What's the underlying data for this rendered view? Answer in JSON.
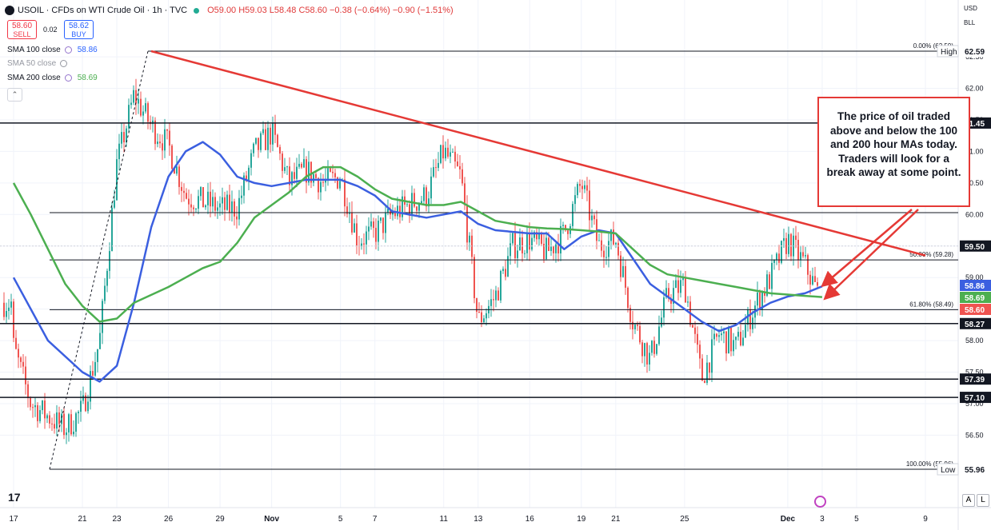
{
  "header": {
    "symbol": "USOIL · CFDs on WTI Crude Oil · 1h · TVC",
    "ohlc": "O59.00 H59.03 L58.48 C58.60 −0.38 (−0.64%) −0.90 (−1.51%)"
  },
  "trade": {
    "sell_price": "58.60",
    "sell_label": "SELL",
    "spread": "0.02",
    "buy_price": "58.62",
    "buy_label": "BUY"
  },
  "indicators": [
    {
      "label": "SMA 100 close",
      "value": "58.86",
      "color": "#2962ff"
    },
    {
      "label": "SMA 50 close",
      "value": "",
      "color": "#9598a1"
    },
    {
      "label": "SMA 200 close",
      "value": "58.69",
      "color": "#4caf50"
    }
  ],
  "toolbar": {
    "currency": "USD",
    "unit": "BLL",
    "auto_btn": "A",
    "log_btn": "L"
  },
  "annotation": "The price of oil traded above and below the 100 and 200 hour MAs today.  Traders will look for a break away at some point.",
  "colors": {
    "up": "#26a69a",
    "down": "#ef5350",
    "sma100": "#3b5fe0",
    "sma200": "#4caf50",
    "trend": "#e53935"
  },
  "chart_data": {
    "type": "candlestick",
    "x_tick_labels": [
      "17",
      "21",
      "23",
      "26",
      "29",
      "Nov",
      "5",
      "7",
      "11",
      "13",
      "16",
      "19",
      "21",
      "25",
      "Dec",
      "3",
      "5",
      "9"
    ],
    "y_tick_labels": [
      "56.50",
      "57.00",
      "57.50",
      "58.00",
      "58.50",
      "59.00",
      "59.50",
      "60.00",
      "60.50",
      "61.00",
      "61.50",
      "62.00",
      "62.50"
    ],
    "ylim": [
      55.5,
      63.2
    ],
    "horizontal_levels": [
      {
        "price": 62.59,
        "label": "62.59",
        "tag": "High"
      },
      {
        "price": 61.45,
        "label": "61.45"
      },
      {
        "price": 60.03,
        "label": ""
      },
      {
        "price": 59.5,
        "label": "59.50"
      },
      {
        "price": 59.28,
        "label": ""
      },
      {
        "price": 58.49,
        "label": ""
      },
      {
        "price": 58.27,
        "label": "58.27"
      },
      {
        "price": 57.39,
        "label": "57.39"
      },
      {
        "price": 57.1,
        "label": "57.10"
      },
      {
        "price": 55.96,
        "label": "55.96",
        "tag": "Low"
      }
    ],
    "fib_labels": [
      {
        "price": 62.59,
        "text": "0.00% (62.59)"
      },
      {
        "price": 59.28,
        "text": "50.00% (59.28)"
      },
      {
        "price": 58.49,
        "text": "61.80% (58.49)"
      },
      {
        "price": 55.96,
        "text": "100.00% (55.96)"
      }
    ],
    "price_tags": [
      {
        "price": 58.86,
        "text": "58.86",
        "color": "#3b5fe0"
      },
      {
        "price": 58.69,
        "text": "58.69",
        "color": "#4caf50"
      },
      {
        "price": 58.6,
        "text": "58.60",
        "color": "#ef5350"
      }
    ],
    "trendline": {
      "from": [
        "Oct 25",
        62.59
      ],
      "to": [
        "Dec 9",
        59.4
      ]
    },
    "close_path": [
      [
        "Oct 17",
        57.9
      ],
      [
        "Oct 18",
        57.0
      ],
      [
        "Oct 20",
        56.6
      ],
      [
        "Oct 21",
        56.9
      ],
      [
        "Oct 22",
        58.0
      ],
      [
        "Oct 23",
        60.8
      ],
      [
        "Oct 24",
        61.9
      ],
      [
        "Oct 25",
        61.4
      ],
      [
        "Oct 26",
        61.1
      ],
      [
        "Oct 27",
        60.3
      ],
      [
        "Oct 28",
        60.2
      ],
      [
        "Oct 29",
        60.1
      ],
      [
        "Oct 30",
        60.1
      ],
      [
        "Oct 31",
        61.0
      ],
      [
        "Nov 1",
        61.3
      ],
      [
        "Nov 2",
        60.5
      ],
      [
        "Nov 3",
        60.7
      ],
      [
        "Nov 4",
        60.5
      ],
      [
        "Nov 5",
        60.6
      ],
      [
        "Nov 6",
        59.6
      ],
      [
        "Nov 7",
        59.7
      ],
      [
        "Nov 8",
        60.0
      ],
      [
        "Nov 10",
        60.3
      ],
      [
        "Nov 11",
        61.0
      ],
      [
        "Nov 12",
        60.6
      ],
      [
        "Nov 13",
        58.3
      ],
      [
        "Nov 14",
        58.7
      ],
      [
        "Nov 15",
        59.5
      ],
      [
        "Nov 16",
        59.6
      ],
      [
        "Nov 17",
        59.4
      ],
      [
        "Nov 18",
        59.7
      ],
      [
        "Nov 19",
        60.5
      ],
      [
        "Nov 20",
        59.5
      ],
      [
        "Nov 21",
        59.6
      ],
      [
        "Nov 22",
        58.3
      ],
      [
        "Nov 23",
        57.7
      ],
      [
        "Nov 24",
        58.7
      ],
      [
        "Nov 25",
        58.9
      ],
      [
        "Nov 26",
        57.4
      ],
      [
        "Nov 27",
        58.1
      ],
      [
        "Nov 28",
        57.9
      ],
      [
        "Nov 29",
        58.5
      ],
      [
        "Nov 30",
        59.0
      ],
      [
        "Dec 1",
        59.6
      ],
      [
        "Dec 2",
        59.2
      ],
      [
        "Dec 3",
        58.6
      ]
    ],
    "series": [
      {
        "name": "SMA 100 close",
        "values": [
          [
            "Oct 17",
            59.0
          ],
          [
            "Oct 19",
            58.0
          ],
          [
            "Oct 21",
            57.5
          ],
          [
            "Oct 22",
            57.35
          ],
          [
            "Oct 23",
            57.6
          ],
          [
            "Oct 24",
            58.6
          ],
          [
            "Oct 25",
            59.8
          ],
          [
            "Oct 26",
            60.6
          ],
          [
            "Oct 27",
            61.0
          ],
          [
            "Oct 28",
            61.15
          ],
          [
            "Oct 29",
            60.95
          ],
          [
            "Oct 30",
            60.6
          ],
          [
            "Oct 31",
            60.5
          ],
          [
            "Nov 1",
            60.45
          ],
          [
            "Nov 3",
            60.55
          ],
          [
            "Nov 5",
            60.55
          ],
          [
            "Nov 6",
            60.45
          ],
          [
            "Nov 7",
            60.3
          ],
          [
            "Nov 8",
            60.05
          ],
          [
            "Nov 10",
            59.95
          ],
          [
            "Nov 11",
            60.0
          ],
          [
            "Nov 12",
            60.05
          ],
          [
            "Nov 13",
            59.85
          ],
          [
            "Nov 14",
            59.75
          ],
          [
            "Nov 16",
            59.7
          ],
          [
            "Nov 17",
            59.7
          ],
          [
            "Nov 18",
            59.45
          ],
          [
            "Nov 19",
            59.65
          ],
          [
            "Nov 20",
            59.75
          ],
          [
            "Nov 21",
            59.7
          ],
          [
            "Nov 22",
            59.3
          ],
          [
            "Nov 23",
            58.9
          ],
          [
            "Nov 24",
            58.7
          ],
          [
            "Nov 25",
            58.5
          ],
          [
            "Nov 26",
            58.3
          ],
          [
            "Nov 27",
            58.15
          ],
          [
            "Nov 28",
            58.25
          ],
          [
            "Nov 29",
            58.45
          ],
          [
            "Nov 30",
            58.6
          ],
          [
            "Dec 1",
            58.7
          ],
          [
            "Dec 2",
            58.75
          ],
          [
            "Dec 3",
            58.86
          ]
        ]
      },
      {
        "name": "SMA 200 close",
        "values": [
          [
            "Oct 17",
            60.5
          ],
          [
            "Oct 18",
            60.0
          ],
          [
            "Oct 20",
            58.9
          ],
          [
            "Oct 21",
            58.55
          ],
          [
            "Oct 22",
            58.3
          ],
          [
            "Oct 23",
            58.35
          ],
          [
            "Oct 24",
            58.6
          ],
          [
            "Oct 26",
            58.85
          ],
          [
            "Oct 27",
            59.0
          ],
          [
            "Oct 28",
            59.15
          ],
          [
            "Oct 29",
            59.25
          ],
          [
            "Oct 30",
            59.55
          ],
          [
            "Oct 31",
            59.95
          ],
          [
            "Nov 2",
            60.35
          ],
          [
            "Nov 3",
            60.6
          ],
          [
            "Nov 4",
            60.75
          ],
          [
            "Nov 5",
            60.75
          ],
          [
            "Nov 6",
            60.6
          ],
          [
            "Nov 7",
            60.4
          ],
          [
            "Nov 8",
            60.25
          ],
          [
            "Nov 10",
            60.15
          ],
          [
            "Nov 11",
            60.15
          ],
          [
            "Nov 12",
            60.2
          ],
          [
            "Nov 13",
            60.05
          ],
          [
            "Nov 14",
            59.9
          ],
          [
            "Nov 15",
            59.85
          ],
          [
            "Nov 16",
            59.8
          ],
          [
            "Nov 17",
            59.78
          ],
          [
            "Nov 18",
            59.77
          ],
          [
            "Nov 19",
            59.75
          ],
          [
            "Nov 20",
            59.73
          ],
          [
            "Nov 21",
            59.7
          ],
          [
            "Nov 22",
            59.45
          ],
          [
            "Nov 23",
            59.2
          ],
          [
            "Nov 24",
            59.05
          ],
          [
            "Nov 25",
            59.0
          ],
          [
            "Nov 26",
            58.95
          ],
          [
            "Nov 27",
            58.9
          ],
          [
            "Nov 28",
            58.85
          ],
          [
            "Nov 29",
            58.8
          ],
          [
            "Nov 30",
            58.75
          ],
          [
            "Dec 1",
            58.73
          ],
          [
            "Dec 2",
            58.71
          ],
          [
            "Dec 3",
            58.69
          ]
        ]
      }
    ]
  }
}
